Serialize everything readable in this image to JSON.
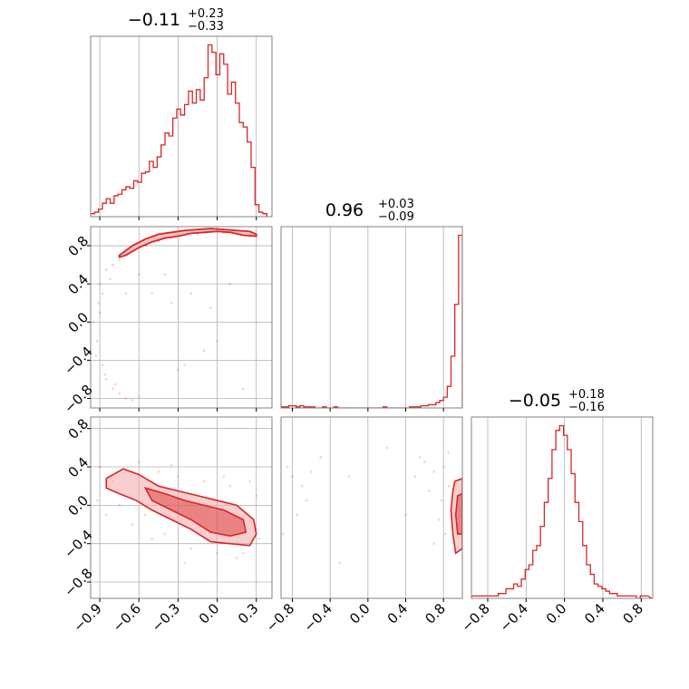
{
  "colors": {
    "series": "#d62728",
    "fill": "#f4a6a8",
    "grid": "#b0b0b0",
    "axes": "#808080"
  },
  "chart_data": [
    {
      "type": "histogram",
      "panel": "hist-p1",
      "title": {
        "main": "−0.11",
        "plus": "+0.23",
        "minus": "−0.33"
      },
      "xlim": [
        -0.97,
        0.42
      ],
      "xticks": [
        -0.9,
        -0.6,
        -0.3,
        0.0,
        0.3
      ],
      "grid": true,
      "bins_x": [
        -0.97,
        -0.94,
        -0.91,
        -0.88,
        -0.85,
        -0.82,
        -0.79,
        -0.76,
        -0.73,
        -0.7,
        -0.67,
        -0.64,
        -0.61,
        -0.58,
        -0.55,
        -0.52,
        -0.49,
        -0.46,
        -0.43,
        -0.4,
        -0.37,
        -0.34,
        -0.31,
        -0.28,
        -0.25,
        -0.22,
        -0.19,
        -0.16,
        -0.13,
        -0.1,
        -0.07,
        -0.04,
        -0.01,
        0.02,
        0.05,
        0.08,
        0.11,
        0.14,
        0.17,
        0.2,
        0.23,
        0.26,
        0.29,
        0.32,
        0.35,
        0.38
      ],
      "counts": [
        2,
        3,
        5,
        9,
        12,
        9,
        14,
        15,
        18,
        20,
        19,
        24,
        23,
        29,
        30,
        37,
        33,
        40,
        48,
        56,
        54,
        66,
        72,
        68,
        75,
        84,
        76,
        85,
        78,
        93,
        115,
        110,
        95,
        109,
        102,
        82,
        90,
        76,
        63,
        60,
        50,
        33,
        8,
        3,
        2
      ]
    },
    {
      "type": "histogram",
      "panel": "hist-p2",
      "title": {
        "main": "0.96",
        "plus": "+0.03",
        "minus": "−0.09"
      },
      "xlim": [
        -0.92,
        1.0
      ],
      "xticks": [
        -0.8,
        -0.4,
        0.0,
        0.4,
        0.8
      ],
      "grid": true,
      "bins_x": [
        -0.92,
        -0.88,
        -0.84,
        -0.8,
        -0.76,
        -0.72,
        -0.68,
        -0.64,
        -0.6,
        -0.56,
        -0.52,
        -0.48,
        -0.44,
        -0.4,
        -0.36,
        -0.32,
        -0.28,
        -0.24,
        -0.2,
        -0.16,
        -0.12,
        -0.08,
        -0.04,
        0.0,
        0.04,
        0.08,
        0.12,
        0.16,
        0.2,
        0.24,
        0.28,
        0.32,
        0.36,
        0.4,
        0.44,
        0.48,
        0.52,
        0.56,
        0.6,
        0.64,
        0.68,
        0.72,
        0.76,
        0.8,
        0.84,
        0.88,
        0.92,
        0.96,
        1.0
      ],
      "counts": [
        1,
        1,
        2,
        2,
        1,
        2,
        1,
        1,
        1,
        0,
        0,
        1,
        0,
        0,
        1,
        0,
        0,
        0,
        0,
        0,
        0,
        0,
        0,
        0,
        0,
        0,
        0,
        1,
        0,
        0,
        0,
        0,
        0,
        0,
        1,
        1,
        1,
        2,
        2,
        3,
        3,
        5,
        7,
        10,
        20,
        48,
        96,
        160
      ]
    },
    {
      "type": "histogram",
      "panel": "hist-p3",
      "title": {
        "main": "−0.05",
        "plus": "+0.18",
        "minus": "−0.16"
      },
      "xlim": [
        -0.97,
        0.92
      ],
      "xticks": [
        -0.8,
        -0.4,
        0.0,
        0.4,
        0.8
      ],
      "grid": true,
      "bins_x": [
        -0.97,
        -0.93,
        -0.89,
        -0.85,
        -0.81,
        -0.77,
        -0.73,
        -0.69,
        -0.65,
        -0.61,
        -0.57,
        -0.53,
        -0.49,
        -0.45,
        -0.41,
        -0.37,
        -0.33,
        -0.29,
        -0.25,
        -0.21,
        -0.17,
        -0.13,
        -0.09,
        -0.05,
        -0.01,
        0.03,
        0.07,
        0.11,
        0.15,
        0.19,
        0.23,
        0.27,
        0.31,
        0.35,
        0.39,
        0.43,
        0.47,
        0.51,
        0.55,
        0.59,
        0.63,
        0.67,
        0.71,
        0.75,
        0.79,
        0.83,
        0.87,
        0.91
      ],
      "counts": [
        1,
        1,
        1,
        1,
        1,
        1,
        1,
        2,
        2,
        4,
        4,
        6,
        5,
        8,
        12,
        14,
        20,
        22,
        30,
        40,
        50,
        62,
        70,
        72,
        68,
        62,
        52,
        40,
        32,
        22,
        14,
        10,
        6,
        5,
        4,
        3,
        2,
        2,
        1,
        1,
        1,
        1,
        1,
        0,
        1,
        1
      ]
    },
    {
      "type": "scatter",
      "panel": "scatter-p1p2",
      "xlim": [
        -0.97,
        0.42
      ],
      "ylim": [
        -0.9,
        1.0
      ],
      "xticks": [
        -0.9,
        -0.6,
        -0.3,
        0.0,
        0.3
      ],
      "yticks": [
        -0.8,
        -0.4,
        0.0,
        0.4,
        0.8
      ],
      "grid": true,
      "contour_band": [
        [
          -0.75,
          0.7
        ],
        [
          -0.65,
          0.8
        ],
        [
          -0.55,
          0.87
        ],
        [
          -0.45,
          0.92
        ],
        [
          -0.35,
          0.94
        ],
        [
          -0.25,
          0.96
        ],
        [
          -0.15,
          0.97
        ],
        [
          -0.05,
          0.98
        ],
        [
          0.05,
          0.97
        ],
        [
          0.15,
          0.96
        ],
        [
          0.25,
          0.95
        ],
        [
          0.3,
          0.92
        ],
        [
          0.3,
          0.9
        ],
        [
          0.2,
          0.91
        ],
        [
          0.1,
          0.94
        ],
        [
          0.0,
          0.95
        ],
        [
          -0.1,
          0.94
        ],
        [
          -0.2,
          0.93
        ],
        [
          -0.3,
          0.9
        ],
        [
          -0.4,
          0.88
        ],
        [
          -0.5,
          0.84
        ],
        [
          -0.6,
          0.78
        ],
        [
          -0.7,
          0.7
        ],
        [
          -0.75,
          0.68
        ]
      ],
      "points": [
        [
          -0.9,
          0.4
        ],
        [
          -0.88,
          0.3
        ],
        [
          -0.85,
          0.55
        ],
        [
          -0.9,
          0.1
        ],
        [
          -0.92,
          -0.2
        ],
        [
          -0.88,
          -0.45
        ],
        [
          -0.85,
          -0.6
        ],
        [
          -0.8,
          -0.7
        ],
        [
          -0.75,
          -0.75
        ],
        [
          -0.7,
          -0.8
        ],
        [
          -0.65,
          -0.82
        ],
        [
          -0.8,
          0.6
        ],
        [
          -0.75,
          0.65
        ],
        [
          -0.7,
          0.72
        ],
        [
          -0.6,
          0.5
        ],
        [
          -0.5,
          0.3
        ],
        [
          -0.4,
          0.5
        ],
        [
          -0.3,
          -0.5
        ],
        [
          -0.25,
          -0.45
        ],
        [
          -0.2,
          0.3
        ],
        [
          -0.1,
          -0.3
        ],
        [
          0.0,
          -0.2
        ],
        [
          0.1,
          0.4
        ],
        [
          0.2,
          -0.7
        ],
        [
          -0.95,
          0.0
        ],
        [
          -0.93,
          -0.35
        ],
        [
          -0.82,
          0.45
        ],
        [
          -0.78,
          -0.65
        ],
        [
          -0.55,
          0.8
        ],
        [
          -0.45,
          0.85
        ],
        [
          -0.35,
          0.88
        ],
        [
          -0.15,
          0.92
        ],
        [
          0.05,
          0.93
        ],
        [
          0.25,
          0.9
        ],
        [
          -0.6,
          -0.78
        ],
        [
          -0.86,
          -0.55
        ],
        [
          -0.91,
          0.2
        ],
        [
          -0.7,
          0.3
        ],
        [
          -0.05,
          0.15
        ],
        [
          -0.35,
          0.2
        ]
      ]
    },
    {
      "type": "scatter",
      "panel": "scatter-p1p3",
      "xlim": [
        -0.97,
        0.42
      ],
      "ylim": [
        -0.97,
        0.92
      ],
      "xticks": [
        -0.9,
        -0.6,
        -0.3,
        0.0,
        0.3
      ],
      "yticks": [
        -0.8,
        -0.4,
        0.0,
        0.4,
        0.8
      ],
      "xticklabels": [
        "−0.9",
        "−0.6",
        "−0.3",
        "0.0",
        "0.3"
      ],
      "grid": true,
      "contour_outer": [
        [
          -0.85,
          0.28
        ],
        [
          -0.72,
          0.38
        ],
        [
          -0.6,
          0.32
        ],
        [
          -0.45,
          0.2
        ],
        [
          -0.3,
          0.15
        ],
        [
          -0.15,
          0.1
        ],
        [
          0.0,
          0.05
        ],
        [
          0.15,
          0.0
        ],
        [
          0.28,
          -0.15
        ],
        [
          0.3,
          -0.3
        ],
        [
          0.25,
          -0.42
        ],
        [
          0.1,
          -0.4
        ],
        [
          -0.05,
          -0.38
        ],
        [
          -0.2,
          -0.25
        ],
        [
          -0.35,
          -0.15
        ],
        [
          -0.5,
          -0.05
        ],
        [
          -0.62,
          0.05
        ],
        [
          -0.75,
          0.12
        ],
        [
          -0.85,
          0.18
        ]
      ],
      "contour_inner": [
        [
          -0.55,
          0.18
        ],
        [
          -0.4,
          0.12
        ],
        [
          -0.25,
          0.05
        ],
        [
          -0.1,
          0.0
        ],
        [
          0.05,
          -0.05
        ],
        [
          0.2,
          -0.15
        ],
        [
          0.22,
          -0.28
        ],
        [
          0.1,
          -0.32
        ],
        [
          -0.05,
          -0.28
        ],
        [
          -0.2,
          -0.15
        ],
        [
          -0.35,
          -0.05
        ],
        [
          -0.5,
          0.05
        ]
      ],
      "points": [
        [
          -0.9,
          0.4
        ],
        [
          -0.8,
          0.25
        ],
        [
          -0.7,
          0.35
        ],
        [
          -0.6,
          0.45
        ],
        [
          -0.55,
          -0.1
        ],
        [
          -0.45,
          0.35
        ],
        [
          -0.4,
          -0.3
        ],
        [
          -0.3,
          0.3
        ],
        [
          -0.2,
          -0.45
        ],
        [
          -0.1,
          0.25
        ],
        [
          0.0,
          -0.5
        ],
        [
          0.1,
          0.2
        ],
        [
          0.2,
          -0.5
        ],
        [
          0.3,
          0.1
        ],
        [
          0.32,
          -0.35
        ],
        [
          -0.65,
          -0.2
        ],
        [
          -0.75,
          0.0
        ],
        [
          -0.35,
          0.42
        ],
        [
          0.15,
          -0.55
        ],
        [
          -0.5,
          -0.35
        ],
        [
          -0.85,
          -0.1
        ],
        [
          0.05,
          0.3
        ],
        [
          -0.25,
          -0.6
        ],
        [
          0.25,
          0.25
        ],
        [
          -0.92,
          0.05
        ]
      ]
    },
    {
      "type": "scatter",
      "panel": "scatter-p2p3",
      "xlim": [
        -0.92,
        1.0
      ],
      "ylim": [
        -0.97,
        0.92
      ],
      "xticks": [
        -0.8,
        -0.4,
        0.0,
        0.4,
        0.8
      ],
      "xticklabels": [
        "−0.8",
        "−0.4",
        "0.0",
        "0.4",
        "0.8"
      ],
      "grid": true,
      "contour_outer": [
        [
          0.92,
          0.25
        ],
        [
          1.0,
          0.28
        ],
        [
          1.0,
          -0.45
        ],
        [
          0.93,
          -0.5
        ],
        [
          0.9,
          -0.3
        ],
        [
          0.88,
          -0.05
        ],
        [
          0.9,
          0.15
        ]
      ],
      "contour_inner": [
        [
          0.95,
          0.1
        ],
        [
          1.0,
          0.12
        ],
        [
          1.0,
          -0.3
        ],
        [
          0.95,
          -0.3
        ],
        [
          0.93,
          -0.1
        ]
      ],
      "points": [
        [
          -0.8,
          0.3
        ],
        [
          -0.7,
          0.2
        ],
        [
          -0.6,
          0.35
        ],
        [
          -0.75,
          -0.1
        ],
        [
          -0.85,
          0.4
        ],
        [
          -0.5,
          0.5
        ],
        [
          -0.3,
          -0.6
        ],
        [
          -0.65,
          0.05
        ],
        [
          0.2,
          0.6
        ],
        [
          0.5,
          0.3
        ],
        [
          0.6,
          0.45
        ],
        [
          0.7,
          0.35
        ],
        [
          0.75,
          -0.15
        ],
        [
          0.8,
          0.4
        ],
        [
          0.85,
          0.55
        ],
        [
          0.82,
          -0.3
        ],
        [
          0.65,
          0.15
        ],
        [
          -0.2,
          0.3
        ],
        [
          0.4,
          -0.1
        ],
        [
          0.55,
          0.5
        ],
        [
          -0.9,
          -0.3
        ],
        [
          0.7,
          -0.4
        ],
        [
          0.86,
          0.2
        ],
        [
          0.78,
          0.05
        ]
      ]
    }
  ],
  "y_tick_labels": {
    "scatter-p1p2": [
      "0.8",
      "0.4",
      "0.0",
      "−0.4",
      "−0.8"
    ],
    "scatter-p1p3": [
      "0.8",
      "0.4",
      "0.0",
      "−0.4",
      "−0.8"
    ]
  },
  "x_tick_labels": {
    "scatter-p1p3": [
      "−0.9",
      "−0.6",
      "−0.3",
      "0.0",
      "0.3"
    ],
    "scatter-p2p3": [
      "−0.8",
      "−0.4",
      "0.0",
      "0.4",
      "0.8"
    ],
    "hist-p3": [
      "−0.8",
      "−0.4",
      "0.0",
      "0.4",
      "0.8"
    ]
  }
}
